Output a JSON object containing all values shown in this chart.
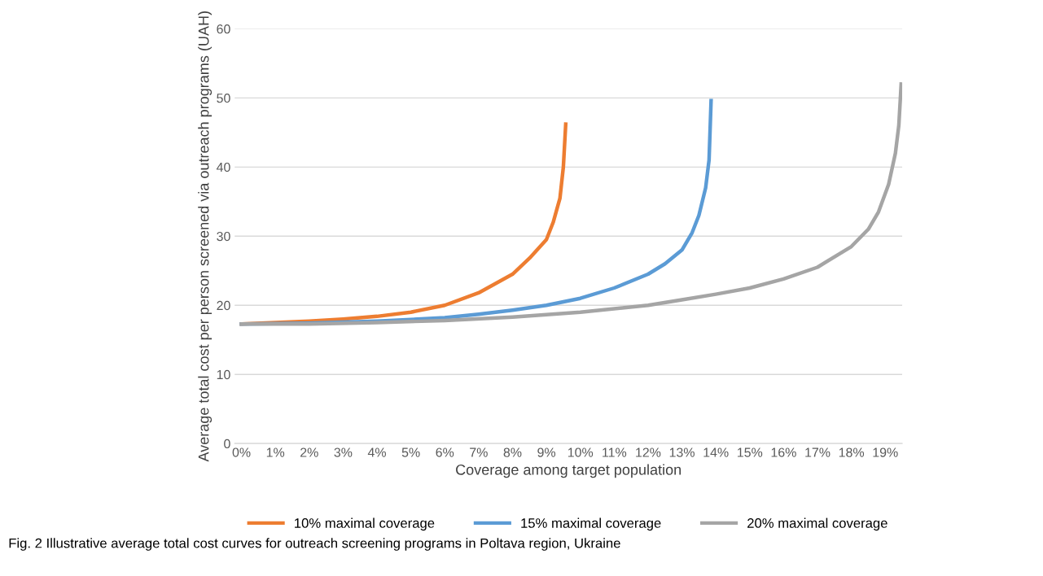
{
  "chart_data": {
    "type": "line",
    "xlabel": "Coverage among target population",
    "ylabel": "Average total cost per person screened via outreach programs (UAH)",
    "annotations": [
      "Fig. 2 Illustrative average total cost curves for outreach screening programs in Poltava region, Ukraine"
    ],
    "xlim": [
      -0.2,
      19.5
    ],
    "ylim": [
      0,
      60
    ],
    "xticks": [
      {
        "value": 0,
        "label": "0%"
      },
      {
        "value": 1,
        "label": "1%"
      },
      {
        "value": 2,
        "label": "2%"
      },
      {
        "value": 3,
        "label": "3%"
      },
      {
        "value": 4,
        "label": "4%"
      },
      {
        "value": 5,
        "label": "5%"
      },
      {
        "value": 6,
        "label": "6%"
      },
      {
        "value": 7,
        "label": "7%"
      },
      {
        "value": 8,
        "label": "8%"
      },
      {
        "value": 9,
        "label": "9%"
      },
      {
        "value": 10,
        "label": "10%"
      },
      {
        "value": 11,
        "label": "11%"
      },
      {
        "value": 12,
        "label": "12%"
      },
      {
        "value": 13,
        "label": "13%"
      },
      {
        "value": 14,
        "label": "14%"
      },
      {
        "value": 15,
        "label": "15%"
      },
      {
        "value": 16,
        "label": "16%"
      },
      {
        "value": 17,
        "label": "17%"
      },
      {
        "value": 18,
        "label": "18%"
      },
      {
        "value": 19,
        "label": "19%"
      }
    ],
    "yticks": [
      0,
      10,
      20,
      30,
      40,
      50,
      60
    ],
    "grid": "y",
    "legend": "bottom",
    "marker": "none",
    "line_style": "solid",
    "series": [
      {
        "name": "10% maximal coverage",
        "color": "#ed7d31",
        "x": [
          0,
          1,
          2,
          3,
          4,
          5,
          6,
          7,
          8,
          8.5,
          9,
          9.2,
          9.4,
          9.5,
          9.57
        ],
        "values": [
          17.3,
          17.5,
          17.7,
          18,
          18.4,
          19,
          20,
          21.8,
          24.5,
          26.8,
          29.5,
          32,
          35.5,
          40,
          46.2
        ]
      },
      {
        "name": "15% maximal coverage",
        "color": "#5b9bd5",
        "x": [
          0,
          2,
          4,
          6,
          7,
          8,
          9,
          10,
          11,
          12,
          12.5,
          13,
          13.3,
          13.5,
          13.7,
          13.8,
          13.86
        ],
        "values": [
          17.3,
          17.4,
          17.7,
          18.2,
          18.7,
          19.3,
          20,
          21,
          22.5,
          24.5,
          26,
          28,
          30.5,
          33,
          37,
          41,
          49.6
        ]
      },
      {
        "name": "20% maximal coverage",
        "color": "#a5a5a5",
        "x": [
          0,
          2,
          4,
          6,
          8,
          10,
          12,
          13,
          14,
          15,
          16,
          17,
          18,
          18.5,
          18.8,
          19.1,
          19.3,
          19.4,
          19.47
        ],
        "values": [
          17.3,
          17.3,
          17.5,
          17.8,
          18.3,
          19,
          20,
          20.8,
          21.6,
          22.5,
          23.8,
          25.5,
          28.5,
          31,
          33.5,
          37.5,
          42,
          46,
          52
        ]
      }
    ]
  }
}
